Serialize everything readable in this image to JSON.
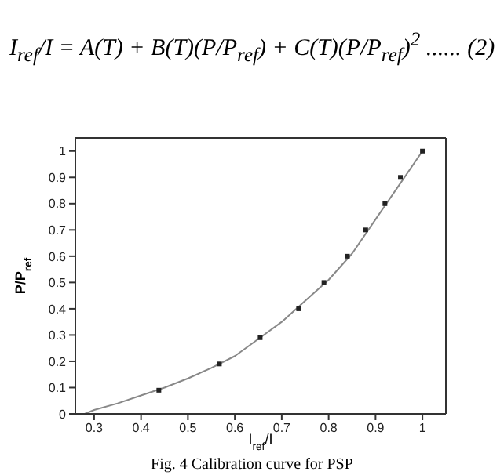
{
  "chart_data": {
    "type": "scatter",
    "annotations": [
      "I$_{ref}$/I = A(T) + B(T)(P/P$_{ref}$) + C(T)(P/P$_{ref}$)$^{2}$ ...... (2)",
      "Fig. 4 Calibration curve for PSP"
    ],
    "xlabel": "I$_{ref}$/I",
    "ylabel": "P/P$_{ref}$",
    "xlim": [
      0.26,
      1.05
    ],
    "xticks": [
      0.3,
      0.4,
      0.5,
      0.6,
      0.7,
      0.8,
      0.9,
      1
    ],
    "ylim": [
      0,
      1.05
    ],
    "yticks": [
      0,
      0.1,
      0.2,
      0.3,
      0.4,
      0.5,
      0.6,
      0.7,
      0.8,
      0.9,
      1
    ],
    "grid": false,
    "legend": false,
    "series": [
      {
        "marker": "square",
        "color": "#222222",
        "x": [
          0.438,
          0.567,
          0.654,
          0.736,
          0.79,
          0.84,
          0.879,
          0.92,
          0.953,
          1.0
        ],
        "values": [
          0.09,
          0.19,
          0.29,
          0.4,
          0.5,
          0.6,
          0.7,
          0.8,
          0.9,
          1.0
        ]
      },
      {
        "type": "line",
        "marker": "none",
        "color": "#888888",
        "x": [
          0.28,
          0.3,
          0.35,
          0.4,
          0.45,
          0.5,
          0.55,
          0.6,
          0.65,
          0.7,
          0.75,
          0.8,
          0.85,
          0.9,
          0.95,
          1.0
        ],
        "values": [
          0,
          0.015,
          0.04,
          0.07,
          0.1,
          0.135,
          0.175,
          0.22,
          0.285,
          0.35,
          0.43,
          0.51,
          0.61,
          0.74,
          0.87,
          1.0
        ]
      }
    ]
  }
}
